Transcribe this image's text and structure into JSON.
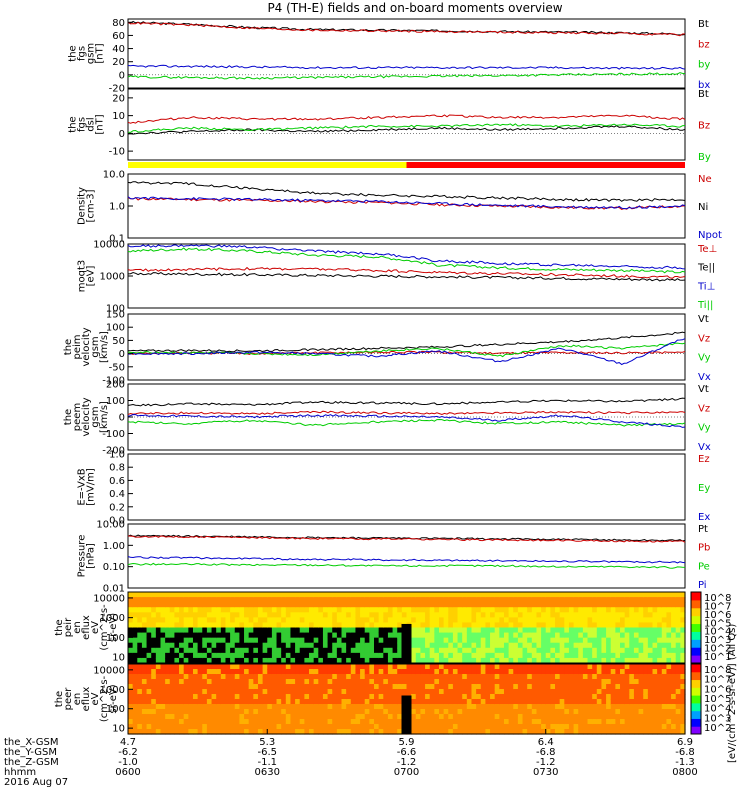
{
  "figure": {
    "title": "P4 (TH-E) fields and on-board moments overview",
    "date_label": "2016 Aug 07",
    "bottom_rows": [
      {
        "label": "the_X-GSM",
        "values": [
          "4.7",
          "5.3",
          "5.9",
          "6.4",
          "6.9"
        ]
      },
      {
        "label": "the_Y-GSM",
        "values": [
          "-6.2",
          "-6.5",
          "-6.6",
          "-6.8",
          "-6.8"
        ]
      },
      {
        "label": "the_Z-GSM",
        "values": [
          "-1.0",
          "-1.1",
          "-1.2",
          "-1.2",
          "-1.3"
        ]
      },
      {
        "label": "hhmm",
        "values": [
          "0600",
          "0630",
          "0700",
          "0730",
          "0800"
        ]
      }
    ]
  },
  "colors": {
    "black": "#000000",
    "red": "#cc0000",
    "green": "#00cc00",
    "blue": "#0000cc",
    "yellow_bar": "#ffff00",
    "red_bar": "#ff0000"
  },
  "chart_data": [
    {
      "type": "line",
      "panel": "fgs-gsm",
      "ylabel": [
        "the",
        "fgs",
        "gsm",
        "[nT]"
      ],
      "yticks": [
        "80",
        "60",
        "40",
        "20",
        "0",
        "-20"
      ],
      "ylim": [
        -20,
        85
      ],
      "legend": [
        {
          "name": "Bt",
          "color": "#000000"
        },
        {
          "name": "bz",
          "color": "#cc0000"
        },
        {
          "name": "by",
          "color": "#00cc00"
        },
        {
          "name": "bx",
          "color": "#0000cc"
        }
      ],
      "series": [
        {
          "name": "Bt",
          "values": [
            80,
            77,
            72,
            69,
            68,
            67,
            66,
            65,
            64,
            62
          ]
        },
        {
          "name": "bz",
          "values": [
            79,
            76,
            71,
            68,
            67,
            66,
            65,
            64,
            63,
            61
          ]
        },
        {
          "name": "by",
          "values": [
            -3,
            -4,
            -5,
            -4,
            -3,
            -2,
            -1,
            0,
            1,
            2
          ]
        },
        {
          "name": "bx",
          "values": [
            13,
            13,
            12,
            11,
            11,
            11,
            11,
            11,
            10,
            10
          ]
        }
      ]
    },
    {
      "type": "line",
      "panel": "fgs-dsl",
      "ylabel": [
        "the",
        "fgs",
        "dsl",
        "[nT]"
      ],
      "yticks": [
        "20",
        "10",
        "0",
        "-10"
      ],
      "ylim": [
        -15,
        25
      ],
      "legend": [
        {
          "name": "Bt",
          "color": "#000000"
        },
        {
          "name": "Bz",
          "color": "#cc0000"
        },
        {
          "name": "By",
          "color": "#00cc00"
        }
      ],
      "series": [
        {
          "name": "Bt",
          "values": [
            0,
            1,
            2,
            1,
            2,
            3,
            2,
            3,
            4,
            2
          ]
        },
        {
          "name": "Bz",
          "values": [
            6,
            9,
            8,
            8,
            9,
            10,
            9,
            9,
            10,
            8
          ]
        },
        {
          "name": "By",
          "values": [
            1,
            3,
            2,
            3,
            4,
            4,
            5,
            4,
            5,
            4
          ]
        }
      ]
    },
    {
      "type": "bar",
      "panel": "mode-bar",
      "segments": [
        {
          "from": "0600",
          "to": "0700",
          "color": "#ffff00"
        },
        {
          "from": "0700",
          "to": "0800",
          "color": "#ff0000"
        }
      ]
    },
    {
      "type": "line",
      "panel": "density",
      "scale": "log",
      "ylabel": [
        "Density",
        "[cm-3]"
      ],
      "yticks": [
        "10.0",
        "1.0",
        "0.1"
      ],
      "ylim": [
        0.1,
        10
      ],
      "legend": [
        {
          "name": "Ne",
          "color": "#cc0000"
        },
        {
          "name": "Ni",
          "color": "#000000"
        },
        {
          "name": "Npot",
          "color": "#0000cc"
        }
      ],
      "series": [
        {
          "name": "Ne",
          "values": [
            1.7,
            1.6,
            1.5,
            1.4,
            1.3,
            1.1,
            1.0,
            0.9,
            0.85,
            1.0
          ]
        },
        {
          "name": "Ni",
          "values": [
            5.5,
            5.0,
            3.5,
            2.5,
            2.2,
            2.0,
            1.8,
            1.6,
            1.5,
            1.6
          ]
        },
        {
          "name": "Npot",
          "values": [
            1.8,
            1.7,
            1.6,
            1.5,
            1.4,
            1.2,
            1.05,
            0.95,
            0.9,
            1.0
          ]
        }
      ]
    },
    {
      "type": "line",
      "panel": "temperature",
      "scale": "log",
      "ylabel": [
        "moqt3",
        "[eV]"
      ],
      "yticks": [
        "10000",
        "1000",
        "100"
      ],
      "ylim": [
        100,
        10000
      ],
      "legend": [
        {
          "name": "Te⊥",
          "color": "#cc0000"
        },
        {
          "name": "Te||",
          "color": "#000000"
        },
        {
          "name": "Ti⊥",
          "color": "#0000cc"
        },
        {
          "name": "Ti||",
          "color": "#00cc00"
        }
      ],
      "series": [
        {
          "name": "Te⊥",
          "values": [
            1500,
            1600,
            1700,
            1650,
            1500,
            1300,
            1200,
            1100,
            1000,
            900
          ]
        },
        {
          "name": "Te||",
          "values": [
            1200,
            1150,
            1100,
            1050,
            1000,
            950,
            900,
            850,
            800,
            750
          ]
        },
        {
          "name": "Ti⊥",
          "values": [
            8500,
            9000,
            8000,
            6000,
            5000,
            3000,
            2500,
            2200,
            2000,
            1800
          ]
        },
        {
          "name": "Ti||",
          "values": [
            6000,
            7000,
            6000,
            4500,
            4000,
            2200,
            1800,
            1600,
            1500,
            1300
          ]
        }
      ]
    },
    {
      "type": "line",
      "panel": "peim-velocity",
      "ylabel": [
        "the",
        "peim",
        "velocity",
        "gsm",
        "[km/s]"
      ],
      "yticks": [
        "150",
        "100",
        "50",
        "0",
        "-50",
        "-100"
      ],
      "ylim": [
        -100,
        150
      ],
      "legend": [
        {
          "name": "Vt",
          "color": "#000000"
        },
        {
          "name": "Vz",
          "color": "#cc0000"
        },
        {
          "name": "Vy",
          "color": "#00cc00"
        },
        {
          "name": "Vx",
          "color": "#0000cc"
        }
      ],
      "series": [
        {
          "name": "Vt",
          "values": [
            10,
            12,
            10,
            15,
            20,
            25,
            35,
            45,
            60,
            80
          ]
        },
        {
          "name": "Vz",
          "values": [
            0,
            2,
            0,
            3,
            5,
            5,
            2,
            4,
            3,
            5
          ]
        },
        {
          "name": "Vy",
          "values": [
            5,
            3,
            0,
            -5,
            10,
            20,
            -10,
            30,
            20,
            40
          ]
        },
        {
          "name": "Vx",
          "values": [
            0,
            0,
            5,
            0,
            -10,
            10,
            -30,
            20,
            -40,
            60
          ]
        }
      ]
    },
    {
      "type": "line",
      "panel": "peem-velocity",
      "ylabel": [
        "the",
        "peem",
        "velocity",
        "gsm",
        "[km/s]"
      ],
      "yticks": [
        "200",
        "100",
        "0",
        "-100",
        "-200"
      ],
      "ylim": [
        -200,
        200
      ],
      "legend": [
        {
          "name": "Vt",
          "color": "#000000"
        },
        {
          "name": "Vz",
          "color": "#cc0000"
        },
        {
          "name": "Vy",
          "color": "#00cc00"
        },
        {
          "name": "Vx",
          "color": "#0000cc"
        }
      ],
      "series": [
        {
          "name": "Vt",
          "values": [
            70,
            80,
            75,
            90,
            85,
            80,
            90,
            100,
            95,
            110
          ]
        },
        {
          "name": "Vz",
          "values": [
            20,
            25,
            20,
            30,
            25,
            20,
            25,
            30,
            25,
            30
          ]
        },
        {
          "name": "Vy",
          "values": [
            -30,
            -40,
            -20,
            -50,
            -30,
            -20,
            -40,
            -30,
            -50,
            -40
          ]
        },
        {
          "name": "Vx",
          "values": [
            10,
            5,
            0,
            10,
            5,
            0,
            -20,
            10,
            -30,
            -60
          ]
        }
      ]
    },
    {
      "type": "line",
      "panel": "efield",
      "ylabel": [
        "E=-VxB",
        "[mV/m]"
      ],
      "yticks": [
        "1.0",
        "0.8",
        "0.6",
        "0.4",
        "0.2",
        "0.0"
      ],
      "ylim": [
        0,
        1
      ],
      "legend": [
        {
          "name": "Ez",
          "color": "#cc0000"
        },
        {
          "name": "Ey",
          "color": "#00cc00"
        },
        {
          "name": "Ex",
          "color": "#0000cc"
        }
      ],
      "series": []
    },
    {
      "type": "line",
      "panel": "pressure",
      "scale": "log",
      "ylabel": [
        "Pressure",
        "[nPa]"
      ],
      "yticks": [
        "10.00",
        "1.00",
        "0.10",
        "0.01"
      ],
      "ylim": [
        0.01,
        10
      ],
      "legend": [
        {
          "name": "Pt",
          "color": "#000000"
        },
        {
          "name": "Pb",
          "color": "#cc0000"
        },
        {
          "name": "Pe",
          "color": "#00cc00"
        },
        {
          "name": "Pi",
          "color": "#0000cc"
        }
      ],
      "series": [
        {
          "name": "Pt",
          "values": [
            2.8,
            2.7,
            2.5,
            2.3,
            2.2,
            2.1,
            2.0,
            1.9,
            1.8,
            1.7
          ]
        },
        {
          "name": "Pb",
          "values": [
            2.6,
            2.5,
            2.3,
            2.1,
            2.0,
            1.9,
            1.8,
            1.7,
            1.6,
            1.5
          ]
        },
        {
          "name": "Pe",
          "values": [
            0.13,
            0.13,
            0.12,
            0.12,
            0.11,
            0.11,
            0.11,
            0.1,
            0.1,
            0.09
          ]
        },
        {
          "name": "Pi",
          "values": [
            0.28,
            0.26,
            0.24,
            0.22,
            0.21,
            0.2,
            0.19,
            0.18,
            0.17,
            0.16
          ]
        }
      ]
    },
    {
      "type": "heatmap",
      "panel": "peir-spectrogram",
      "ylabel": [
        "the",
        "peir",
        "en",
        "eflux",
        "eV",
        "(cm^2-s-",
        "sr-eV)"
      ],
      "yticks": [
        "10000",
        "1000",
        "100",
        "10"
      ]
    },
    {
      "type": "heatmap",
      "panel": "peer-spectrogram",
      "ylabel": [
        "the",
        "peer",
        "en",
        "eflux",
        "eV",
        "(cm^2-s-",
        "sr-eV)"
      ],
      "yticks": [
        "10000",
        "1000",
        "100",
        "10"
      ]
    }
  ],
  "colorbar": {
    "label": "[eV/(cm^2-s-sr-eV)] (All Qs)",
    "peir_ticks": [
      "10^8",
      "10^7",
      "10^6",
      "10^5",
      "10^4",
      "10^3",
      "10^2",
      "10^1"
    ],
    "peer_ticks": [
      "10^8",
      "10^7",
      "10^6",
      "10^5",
      "10^4",
      "10^3",
      "10^2"
    ]
  }
}
